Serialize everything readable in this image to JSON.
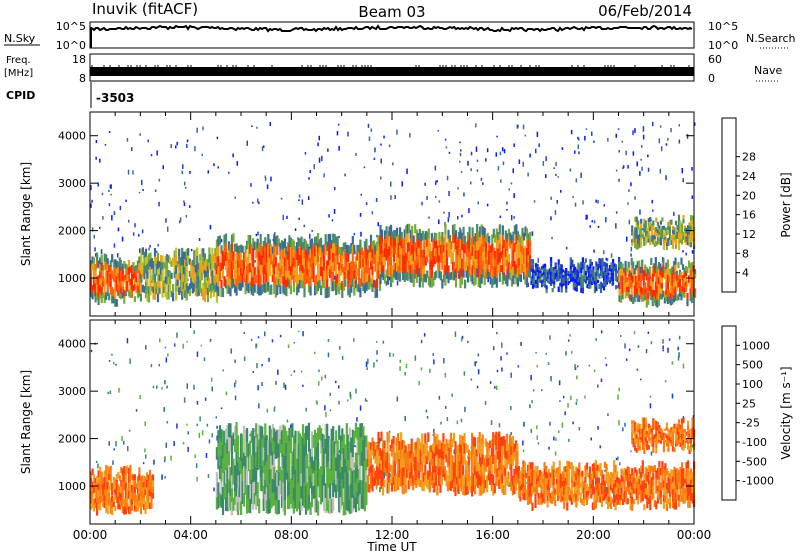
{
  "header": {
    "station": "Inuvik (fitACF)",
    "beam": "Beam 03",
    "date": "06/Feb/2014"
  },
  "top_panels": {
    "nsky_label": "N.Sky",
    "nsky_ticks": [
      "10^5",
      "10^0"
    ],
    "nsearch_ticks": [
      "10^5",
      "10^0"
    ],
    "nsearch_label": "N.Search",
    "freq_label": "Freq.",
    "freq_unit": "[MHz]",
    "freq_ticks": [
      "18",
      "8"
    ],
    "nave_ticks": [
      "60",
      "0"
    ],
    "nave_label": "Nave",
    "cpid_label": "CPID",
    "cpid_value": "-3503"
  },
  "chart_data": [
    {
      "type": "heatmap",
      "name": "Power",
      "ylabel": "Slant Range [km]",
      "xlabel": "Time UT",
      "x_ticks": [
        "00:00",
        "04:00",
        "08:00",
        "12:00",
        "16:00",
        "20:00",
        "00:00"
      ],
      "y_ticks": [
        1000,
        2000,
        3000,
        4000
      ],
      "ylim": [
        200,
        4500
      ],
      "xlim_hours": [
        0,
        24
      ],
      "colorbar": {
        "label": "Power [dB]",
        "ticks": [
          4,
          8,
          12,
          16,
          20,
          24,
          28
        ],
        "colors": [
          "#0a1aff",
          "#2040c8",
          "#3a6a9a",
          "#4a8a6a",
          "#7aaa3a",
          "#c8c020",
          "#f0a018",
          "#ff6010",
          "#ff2a00"
        ]
      },
      "bands": [
        {
          "t0": 0.0,
          "t1": 2.0,
          "r0": 500,
          "r1": 1400,
          "level": "high"
        },
        {
          "t0": 2.0,
          "t1": 5.0,
          "r0": 600,
          "r1": 1500,
          "level": "mid"
        },
        {
          "t0": 5.0,
          "t1": 11.5,
          "r0": 700,
          "r1": 1800,
          "level": "high"
        },
        {
          "t0": 11.5,
          "t1": 17.5,
          "r0": 900,
          "r1": 2000,
          "level": "high"
        },
        {
          "t0": 17.5,
          "t1": 21.0,
          "r0": 800,
          "r1": 1300,
          "level": "low"
        },
        {
          "t0": 21.0,
          "t1": 24.0,
          "r0": 500,
          "r1": 1300,
          "level": "high"
        },
        {
          "t0": 21.5,
          "t1": 24.0,
          "r0": 1700,
          "r1": 2200,
          "level": "mid"
        }
      ]
    },
    {
      "type": "heatmap",
      "name": "Velocity",
      "ylabel": "Slant Range [km]",
      "xlabel": "Time UT",
      "x_ticks": [
        "00:00",
        "04:00",
        "08:00",
        "12:00",
        "16:00",
        "20:00",
        "00:00"
      ],
      "y_ticks": [
        1000,
        2000,
        3000,
        4000
      ],
      "ylim": [
        200,
        4500
      ],
      "xlim_hours": [
        0,
        24
      ],
      "colorbar": {
        "label": "Velocity [m s⁻¹]",
        "ticks": [
          1000,
          500,
          100,
          25,
          -25,
          -100,
          -500,
          -1000
        ],
        "colors": [
          "#1a3ad0",
          "#2a6aaa",
          "#3a8a6a",
          "#5ab040",
          "#c0c0c0",
          "#f0a020",
          "#ff7a10",
          "#ff4010",
          "#ff0000"
        ]
      },
      "bands": [
        {
          "t0": 0.0,
          "t1": 2.5,
          "r0": 500,
          "r1": 1300,
          "level": "orange"
        },
        {
          "t0": 5.0,
          "t1": 11.0,
          "r0": 500,
          "r1": 2200,
          "level": "green"
        },
        {
          "t0": 11.0,
          "t1": 17.0,
          "r0": 900,
          "r1": 2000,
          "level": "orange"
        },
        {
          "t0": 17.0,
          "t1": 24.0,
          "r0": 600,
          "r1": 1400,
          "level": "orange"
        },
        {
          "t0": 21.5,
          "t1": 24.0,
          "r0": 1800,
          "r1": 2300,
          "level": "orange"
        }
      ]
    }
  ]
}
